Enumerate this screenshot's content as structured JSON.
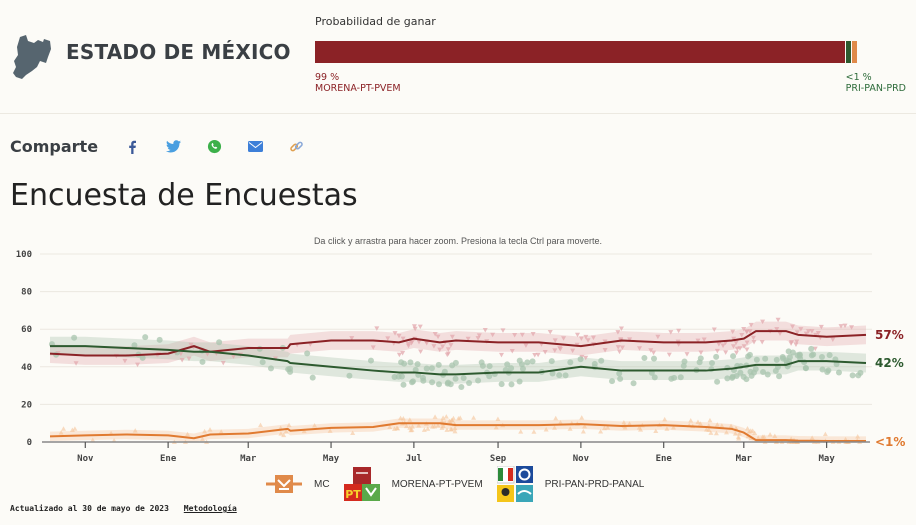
{
  "header": {
    "state_title": "ESTADO DE MÉXICO",
    "state_icon": "mexico-state-map-icon",
    "probability": {
      "label": "Probabilidad de ganar",
      "segments": [
        {
          "party": "MORENA-PT-PVEM",
          "percent": 98.2,
          "color": "#8b2226"
        },
        {
          "party": "PRI-PAN-PRD",
          "percent": 0.9,
          "color": "#2d5a2f"
        },
        {
          "party": "MC",
          "percent": 0.9,
          "color": "#e08a4a"
        }
      ],
      "leader": {
        "value": "99 %",
        "name": "MORENA-PT-PVEM",
        "color": "#8b2226"
      },
      "trailer": {
        "value": "<1 %",
        "name": "PRI-PAN-PRD",
        "color": "#2d6b3a"
      }
    }
  },
  "share": {
    "label": "Comparte",
    "icons": [
      {
        "name": "facebook-icon",
        "color": "#3b5998"
      },
      {
        "name": "twitter-icon",
        "color": "#4a9fe0"
      },
      {
        "name": "whatsapp-icon",
        "color": "#3cb04a"
      },
      {
        "name": "email-icon",
        "color": "#3d7fd8"
      },
      {
        "name": "link-icon",
        "color": "#e0a050"
      }
    ]
  },
  "page_title": "Encuesta de Encuestas",
  "hint": "Da click y arrastra para hacer zoom. Presiona la tecla Ctrl para moverte.",
  "chart_data": {
    "type": "line",
    "title": "Encuesta de Encuestas",
    "xlabel": "",
    "ylabel": "",
    "ylim": [
      0,
      100
    ],
    "yticks": [
      0,
      20,
      40,
      60,
      80,
      100
    ],
    "grid": true,
    "x_range": [
      "2021-10-06",
      "2023-05-30"
    ],
    "xticks": [
      {
        "label": "Nov",
        "date": "2021-11-01"
      },
      {
        "label": "Ene",
        "date": "2022-01-01"
      },
      {
        "label": "Mar",
        "date": "2022-03-01"
      },
      {
        "label": "May",
        "date": "2022-05-01"
      },
      {
        "label": "Jul",
        "date": "2022-07-01"
      },
      {
        "label": "Sep",
        "date": "2022-09-01"
      },
      {
        "label": "Nov",
        "date": "2022-11-01"
      },
      {
        "label": "Ene",
        "date": "2023-01-01"
      },
      {
        "label": "Mar",
        "date": "2023-03-01"
      },
      {
        "label": "May",
        "date": "2023-05-01"
      }
    ],
    "x": [
      "2021-10-06",
      "2021-11-01",
      "2021-12-01",
      "2022-01-01",
      "2022-01-20",
      "2022-02-01",
      "2022-03-01",
      "2022-03-30",
      "2022-04-01",
      "2022-05-01",
      "2022-06-01",
      "2022-06-20",
      "2022-07-01",
      "2022-07-20",
      "2022-08-01",
      "2022-09-01",
      "2022-10-01",
      "2022-11-01",
      "2022-12-01",
      "2023-01-01",
      "2023-02-01",
      "2023-02-20",
      "2023-03-01",
      "2023-03-10",
      "2023-04-01",
      "2023-04-10",
      "2023-05-01",
      "2023-05-30"
    ],
    "series": [
      {
        "name": "MORENA-PT-PVEM",
        "color": "#8b2226",
        "end_label": "57%",
        "values": [
          47,
          46,
          46,
          47,
          51,
          48,
          50,
          50,
          52,
          54,
          54,
          53,
          55,
          53,
          54,
          53,
          53,
          51,
          54,
          53,
          53,
          54,
          55,
          59,
          59,
          57,
          56,
          57
        ]
      },
      {
        "name": "PRI-PAN-PRD-PANAL",
        "color": "#2d5a2f",
        "end_label": "42%",
        "values": [
          51,
          51,
          50,
          49,
          48,
          48,
          46,
          43,
          42,
          40,
          38,
          37,
          37,
          36,
          36,
          37,
          37,
          40,
          38,
          38,
          38,
          39,
          40,
          41,
          41,
          43,
          43,
          42
        ]
      },
      {
        "name": "MC",
        "color": "#e07a30",
        "end_label": "<1%",
        "values": [
          3,
          3.5,
          4,
          3.5,
          2,
          4,
          4.5,
          7,
          6,
          7.5,
          8,
          10,
          10,
          10,
          9,
          9,
          9,
          9.5,
          8.5,
          9,
          8,
          7,
          5,
          1,
          1,
          0.7,
          0.5,
          0.5
        ]
      }
    ]
  },
  "legend": [
    {
      "label": "MC",
      "icon": "mc-logo-icon",
      "color": "#e08a4a"
    },
    {
      "label": "MORENA-PT-PVEM",
      "icon": "morena-pt-pvem-logo-icon",
      "color": "#8b2226"
    },
    {
      "label": "PRI-PAN-PRD-PANAL",
      "icon": "pri-pan-prd-panal-logo-icon",
      "color": "#2d5a2f"
    }
  ],
  "footer": {
    "updated": "Actualizado al 30 de mayo de 2023",
    "methodology_link": "Metodología"
  }
}
